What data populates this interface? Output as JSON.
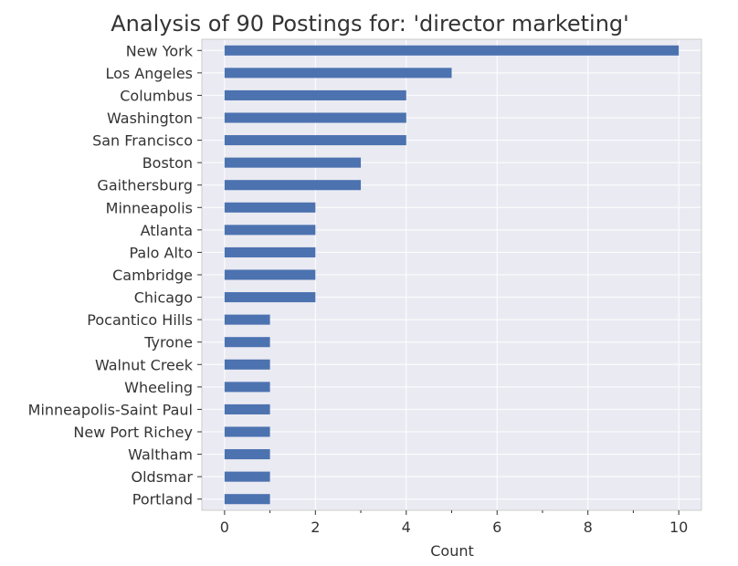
{
  "chart_data": {
    "type": "bar",
    "orientation": "horizontal",
    "title": "Analysis of 90 Postings for: 'director marketing'",
    "xlabel": "Count",
    "ylabel": "",
    "categories": [
      "New York",
      "Los Angeles",
      "Columbus",
      "Washington",
      "San Francisco",
      "Boston",
      "Gaithersburg",
      "Minneapolis",
      "Atlanta",
      "Palo Alto",
      "Cambridge",
      "Chicago",
      "Pocantico Hills",
      "Tyrone",
      "Walnut Creek",
      "Wheeling",
      "Minneapolis-Saint Paul",
      "New Port Richey",
      "Waltham",
      "Oldsmar",
      "Portland"
    ],
    "values": [
      10,
      5,
      4,
      4,
      4,
      3,
      3,
      2,
      2,
      2,
      2,
      2,
      1,
      1,
      1,
      1,
      1,
      1,
      1,
      1,
      1
    ],
    "xlim": [
      -0.5,
      10.5
    ],
    "xticks": [
      0,
      2,
      4,
      6,
      8,
      10
    ],
    "grid": true,
    "colors": {
      "bar": "#4c72b0",
      "plot_background": "#eaeaf2",
      "grid": "#ffffff",
      "text": "#333333",
      "spine": "#cccccc"
    }
  }
}
